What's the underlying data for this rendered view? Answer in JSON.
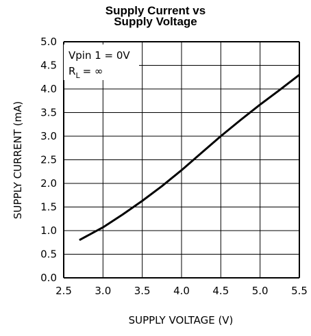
{
  "chart_data": {
    "type": "line",
    "title_line1": "Supply Current vs",
    "title_line2": "Supply Voltage",
    "xlabel": "SUPPLY VOLTAGE (V)",
    "ylabel": "SUPPLY CURRENT (mA)",
    "xlim": [
      2.5,
      5.5
    ],
    "ylim": [
      0.0,
      5.0
    ],
    "xticks": [
      "2.5",
      "3.0",
      "3.5",
      "4.0",
      "4.5",
      "5.0",
      "5.5"
    ],
    "yticks": [
      "0.0",
      "0.5",
      "1.0",
      "1.5",
      "2.0",
      "2.5",
      "3.0",
      "3.5",
      "4.0",
      "4.5",
      "5.0"
    ],
    "grid": true,
    "annotations": {
      "condition1": "Vpin 1 = 0V",
      "condition2_main": "R",
      "condition2_sub": "L",
      "condition2_value": "= ∞"
    },
    "series": [
      {
        "x": [
          2.7,
          3.0,
          3.25,
          3.5,
          3.75,
          4.0,
          4.25,
          4.5,
          4.75,
          5.0,
          5.25,
          5.5
        ],
        "y": [
          0.8,
          1.07,
          1.34,
          1.63,
          1.94,
          2.28,
          2.64,
          3.0,
          3.34,
          3.67,
          3.98,
          4.3
        ]
      }
    ]
  }
}
